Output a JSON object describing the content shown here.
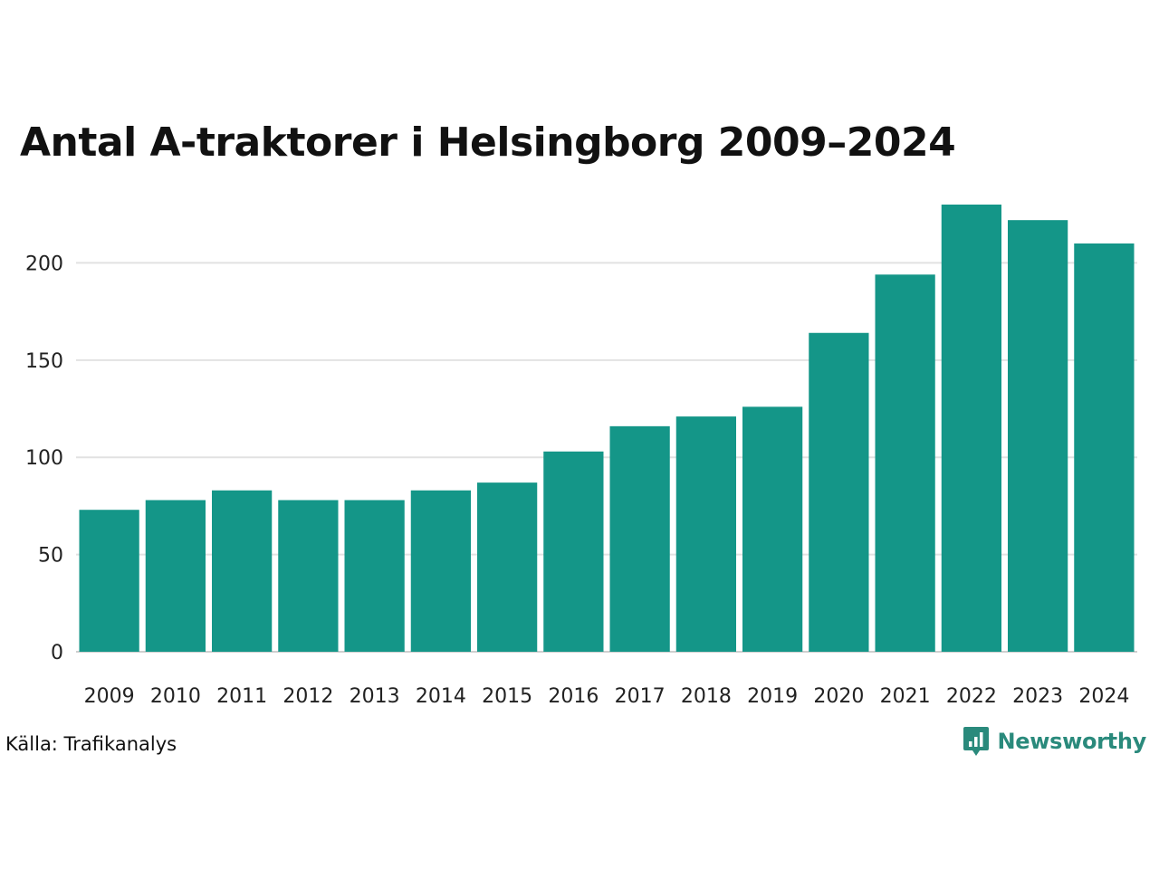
{
  "chart_data": {
    "type": "bar",
    "title": "Antal A-traktorer i Helsingborg 2009–2024",
    "categories": [
      "2009",
      "2010",
      "2011",
      "2012",
      "2013",
      "2014",
      "2015",
      "2016",
      "2017",
      "2018",
      "2019",
      "2020",
      "2021",
      "2022",
      "2023",
      "2024"
    ],
    "values": [
      73,
      78,
      83,
      78,
      78,
      83,
      87,
      103,
      116,
      121,
      126,
      164,
      194,
      230,
      222,
      210
    ],
    "ylim": [
      0,
      230
    ],
    "yticks": [
      0,
      50,
      100,
      150,
      200
    ],
    "xlabel": "",
    "ylabel": "",
    "grid": true,
    "legend": "none",
    "bar_color": "#149688"
  },
  "footer": {
    "source": "Källa: Trafikanalys",
    "brand": "Newsworthy",
    "brand_color": "#2a8a7c",
    "brand_icon": "newsworthy-logo-icon"
  }
}
